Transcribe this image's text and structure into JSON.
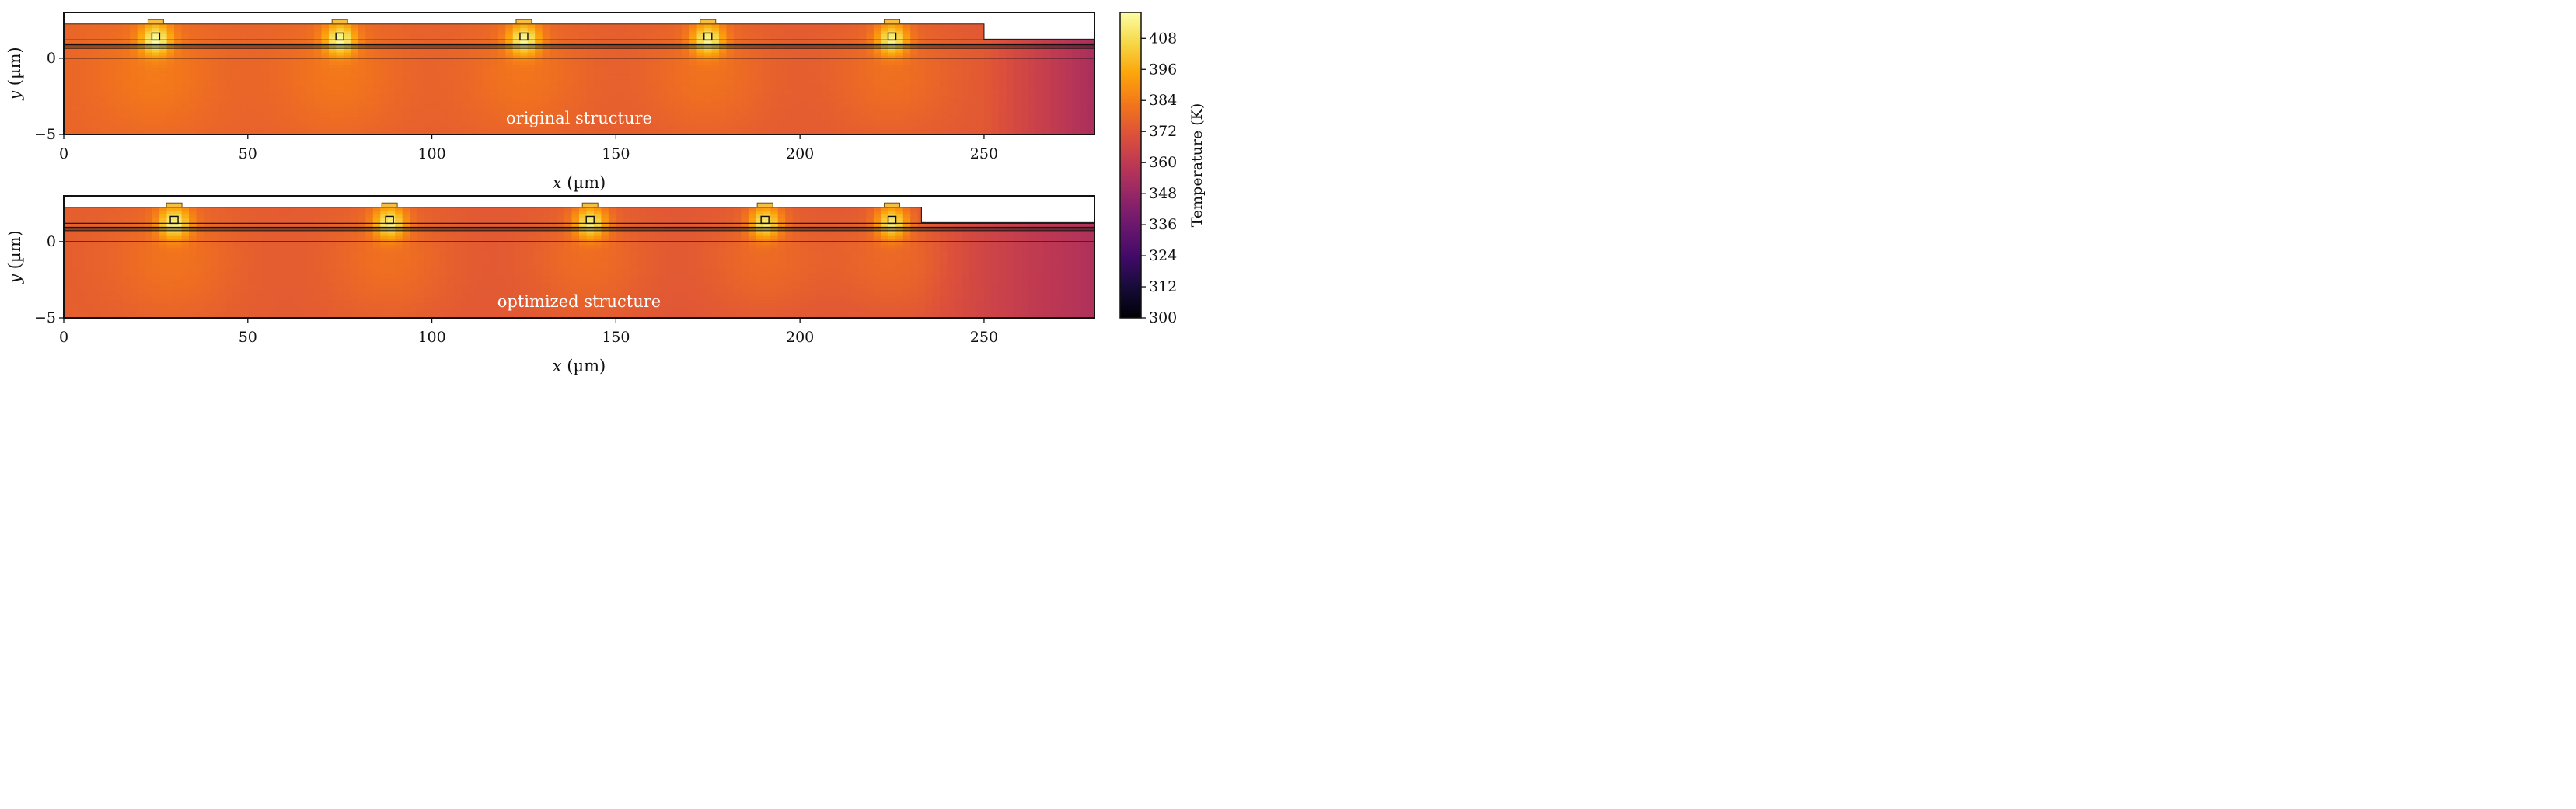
{
  "colorbar": {
    "label": "Temperature (K)",
    "vmin": 300,
    "vmax": 418,
    "colormap": "inferno",
    "ticks": [
      300,
      312,
      324,
      336,
      348,
      360,
      372,
      384,
      396,
      408
    ]
  },
  "chart_data": [
    {
      "type": "heatmap",
      "annotation": "original structure",
      "xlabel_italic": "x",
      "xlabel_unit": " (µm)",
      "ylabel_italic": "y",
      "ylabel_unit": " (µm)",
      "xlim": [
        0,
        280
      ],
      "ylim": [
        -5,
        3
      ],
      "x_ticks": [
        0,
        50,
        100,
        150,
        200,
        250
      ],
      "y_ticks": [
        -5,
        0
      ],
      "upper_slab_end_x": 250,
      "lower_slab_top_y": 1.25,
      "slab_top_y": 2.25,
      "layer_lines_y": [
        1.2,
        0.9,
        0.75,
        0.65,
        0.0
      ],
      "heater_centers_x": [
        25,
        75,
        125,
        175,
        225
      ],
      "hotspot_temperature_K": 414,
      "base_temperature_K": 377,
      "edge_temperature_K": 354
    },
    {
      "type": "heatmap",
      "annotation": "optimized structure",
      "xlabel_italic": "x",
      "xlabel_unit": " (µm)",
      "ylabel_italic": "y",
      "ylabel_unit": " (µm)",
      "xlim": [
        0,
        280
      ],
      "ylim": [
        -5,
        3
      ],
      "x_ticks": [
        0,
        50,
        100,
        150,
        200,
        250
      ],
      "y_ticks": [
        -5,
        0
      ],
      "upper_slab_end_x": 233,
      "lower_slab_top_y": 1.25,
      "slab_top_y": 2.25,
      "layer_lines_y": [
        1.2,
        0.9,
        0.75,
        0.65,
        0.0
      ],
      "heater_centers_x": [
        30,
        88.5,
        143,
        190.5,
        225
      ],
      "hotspot_temperature_K": 414,
      "base_temperature_K": 375,
      "edge_temperature_K": 356
    }
  ]
}
